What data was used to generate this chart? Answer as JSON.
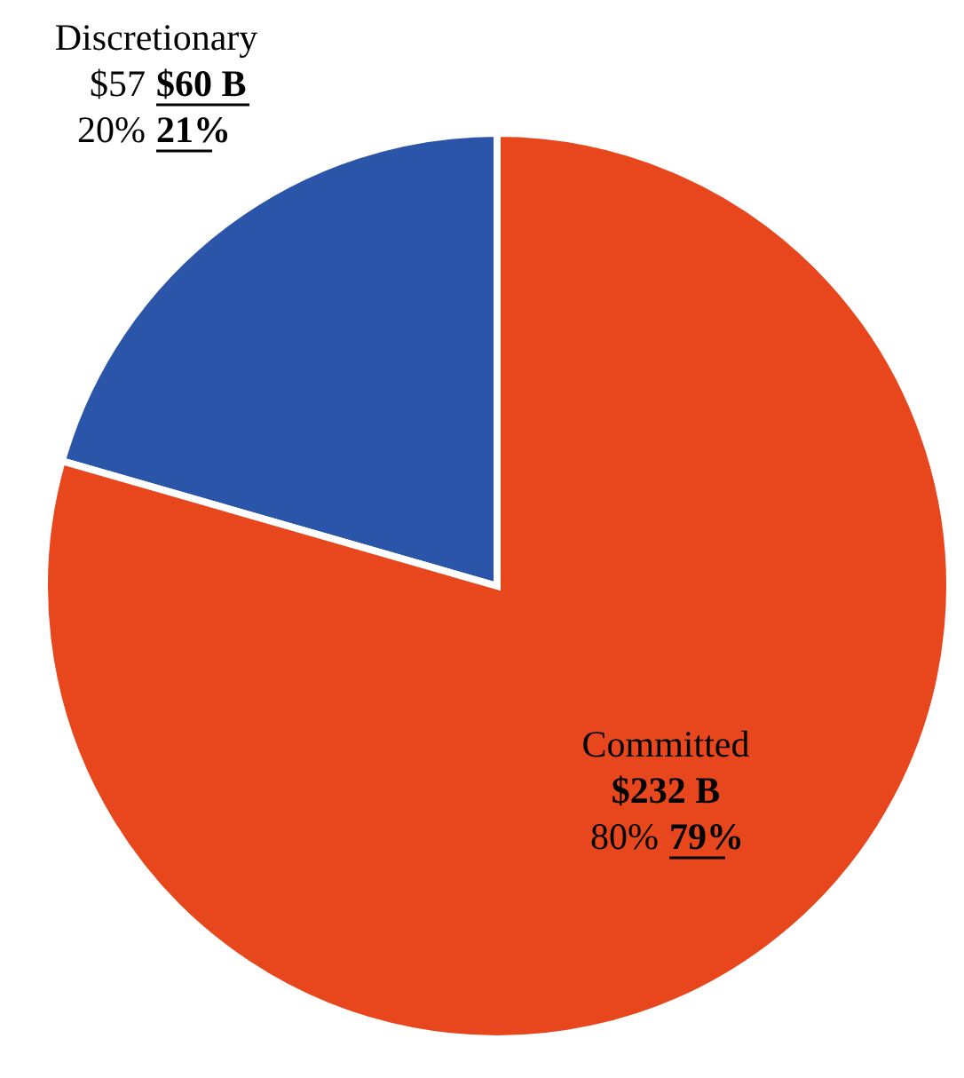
{
  "chart_data": {
    "type": "pie",
    "categories": [
      "Discretionary",
      "Committed"
    ],
    "values": [
      60,
      232
    ],
    "colors": [
      "#2a55a8",
      "#e8461c"
    ],
    "value_labels": [
      "$60 B",
      "$232 B"
    ],
    "annotations": [
      "$57",
      "20%",
      "21%",
      "80%",
      "79%"
    ]
  }
}
